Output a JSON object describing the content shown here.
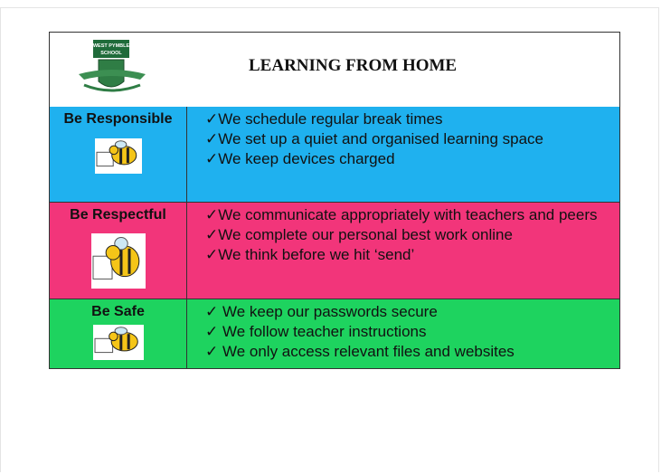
{
  "header": {
    "logo": {
      "line1": "WEST PYMBLE",
      "line2": "SCHOOL"
    },
    "title": "LEARNING FROM HOME"
  },
  "rows": [
    {
      "label": "Be Responsible",
      "color": "#1fb1ef",
      "items": [
        "✓We schedule regular break times",
        "✓We set up a quiet and organised learning space",
        "✓We keep devices charged"
      ]
    },
    {
      "label": "Be Respectful",
      "color": "#f2357a",
      "items": [
        "✓We communicate appropriately with teachers and peers",
        "✓We complete our personal best work online",
        "✓We think before we hit ‘send’"
      ]
    },
    {
      "label": "Be Safe",
      "color": "#1ed35f",
      "items": [
        "✓ We keep our passwords secure",
        "✓ We follow teacher instructions",
        "✓ We only access relevant files and websites"
      ]
    }
  ]
}
